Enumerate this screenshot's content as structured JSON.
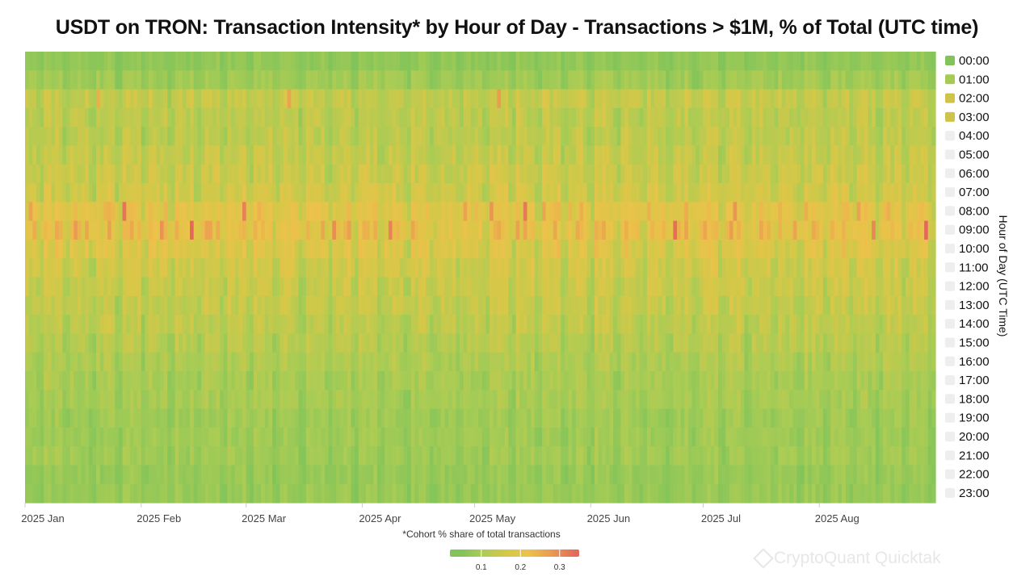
{
  "chart_data": {
    "type": "heatmap",
    "title": "USDT on TRON: Transaction Intensity* by Hour of Day - Transactions > $1M, % of Total (UTC time)",
    "x_tick_labels": [
      "2025 Jan",
      "2025 Feb",
      "2025 Mar",
      "2025 Apr",
      "2025 May",
      "2025 Jun",
      "2025 Jul",
      "2025 Aug"
    ],
    "x_range": [
      "2025-01-01",
      "2025-08-31"
    ],
    "y_categories": [
      "00:00",
      "01:00",
      "02:00",
      "03:00",
      "04:00",
      "05:00",
      "06:00",
      "07:00",
      "08:00",
      "09:00",
      "10:00",
      "11:00",
      "12:00",
      "13:00",
      "14:00",
      "15:00",
      "16:00",
      "17:00",
      "18:00",
      "19:00",
      "20:00",
      "21:00",
      "22:00",
      "23:00"
    ],
    "ylabel": "Hour of Day (UTC Time)",
    "hour_profile_typical": [
      0.07,
      0.09,
      0.14,
      0.13,
      0.13,
      0.14,
      0.15,
      0.16,
      0.2,
      0.21,
      0.18,
      0.16,
      0.15,
      0.14,
      0.13,
      0.12,
      0.11,
      0.1,
      0.1,
      0.09,
      0.09,
      0.09,
      0.08,
      0.08
    ],
    "color_scale": {
      "min": 0.02,
      "max": 0.35,
      "stops": [
        {
          "value": 0.05,
          "color": "#82c45a"
        },
        {
          "value": 0.1,
          "color": "#a9cc55"
        },
        {
          "value": 0.16,
          "color": "#d4c848"
        },
        {
          "value": 0.22,
          "color": "#ecc24a"
        },
        {
          "value": 0.28,
          "color": "#ea9a52"
        },
        {
          "value": 0.34,
          "color": "#e4695a"
        }
      ],
      "tick_labels": [
        "0.1",
        "0.2",
        "0.3"
      ],
      "tick_values": [
        0.1,
        0.2,
        0.3
      ]
    },
    "legend": {
      "placement": "right",
      "items": [
        "00:00",
        "01:00",
        "02:00",
        "03:00",
        "04:00",
        "05:00",
        "06:00",
        "07:00",
        "08:00",
        "09:00",
        "10:00",
        "11:00",
        "12:00",
        "13:00",
        "14:00",
        "15:00",
        "16:00",
        "17:00",
        "18:00",
        "19:00",
        "20:00",
        "21:00",
        "22:00",
        "23:00"
      ],
      "active_colors": [
        "#82c45a",
        "#a5cb55",
        "#cfc34a",
        "#cfc34a"
      ],
      "inactive_color": "#eeeeee"
    },
    "footnote": "*Cohort % share of total transactions"
  },
  "watermark": "CryptoQuant Quicktak"
}
